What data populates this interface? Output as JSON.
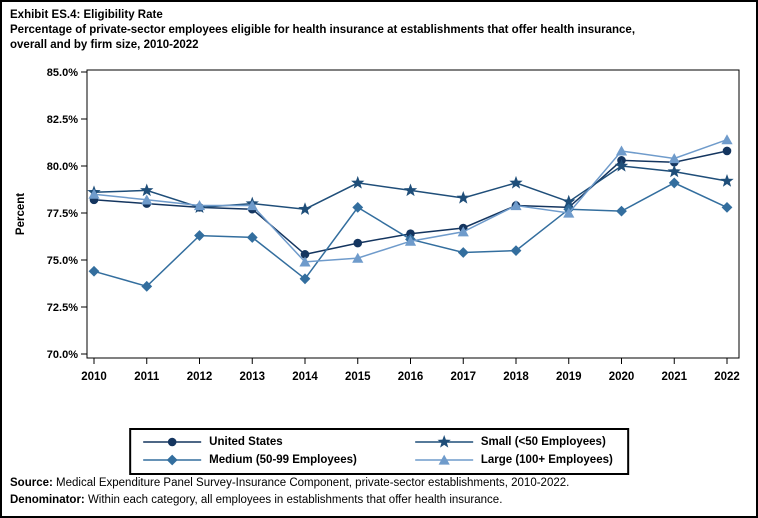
{
  "title": {
    "line1": "Exhibit ES.4: Eligibility Rate",
    "line2": "Percentage of private-sector employees eligible for health insurance at establishments that offer health insurance,",
    "line3": "overall and by firm size, 2010-2022"
  },
  "chart_data": {
    "type": "line",
    "x": [
      2010,
      2011,
      2012,
      2013,
      2014,
      2015,
      2016,
      2017,
      2018,
      2019,
      2020,
      2021,
      2022
    ],
    "series": [
      {
        "name": "United States",
        "marker": "circle",
        "color": "#14355F",
        "values": [
          78.2,
          78.0,
          77.8,
          77.7,
          75.3,
          75.9,
          76.4,
          76.7,
          77.9,
          77.8,
          80.3,
          80.2,
          80.8
        ]
      },
      {
        "name": "Small (<50 Employees)",
        "marker": "star",
        "color": "#1F4E79",
        "values": [
          78.6,
          78.7,
          77.8,
          78.0,
          77.7,
          79.1,
          78.7,
          78.3,
          79.1,
          78.1,
          80.0,
          79.7,
          79.2
        ]
      },
      {
        "name": "Medium (50-99 Employees)",
        "marker": "diamond",
        "color": "#336E9E",
        "values": [
          74.4,
          73.6,
          76.3,
          76.2,
          74.0,
          77.8,
          76.1,
          75.4,
          75.5,
          77.7,
          77.6,
          79.1,
          77.8
        ]
      },
      {
        "name": "Large (100+ Employees)",
        "marker": "triangle",
        "color": "#6F9BCB",
        "values": [
          78.5,
          78.2,
          77.9,
          77.9,
          74.9,
          75.1,
          76.0,
          76.5,
          77.9,
          77.5,
          80.8,
          80.4,
          81.4
        ]
      }
    ],
    "ylabel": "Percent",
    "xlabel": "",
    "ylim": [
      70,
      85
    ],
    "ytick_step": 2.5,
    "ytick_labels": [
      "85.0%",
      "82.5%",
      "80.0%",
      "77.5%",
      "75.0%",
      "72.5%",
      "70.0%"
    ],
    "grid": false,
    "legend_position": "bottom"
  },
  "footer": {
    "source_label": "Source:",
    "source_text": " Medical Expenditure Panel Survey-Insurance Component, private-sector establishments, 2010-2022.",
    "denominator_label": "Denominator:",
    "denominator_text": " Within each category, all employees in establishments that offer health insurance."
  }
}
